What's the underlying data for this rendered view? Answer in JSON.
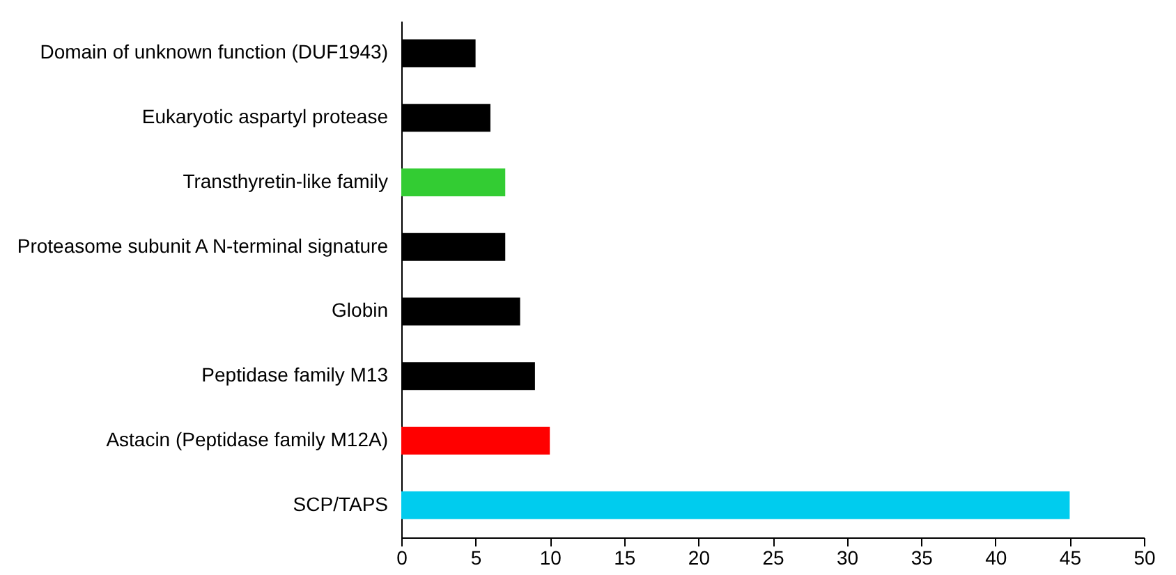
{
  "chart_data": {
    "type": "bar",
    "orientation": "horizontal",
    "categories": [
      "Domain of unknown function (DUF1943)",
      "Eukaryotic aspartyl protease",
      "Transthyretin-like family",
      "Proteasome subunit A N-terminal signature",
      "Globin",
      "Peptidase family M13",
      "Astacin (Peptidase family M12A)",
      "SCP/TAPS"
    ],
    "values": [
      5,
      6,
      7,
      7,
      8,
      9,
      10,
      45
    ],
    "colors": [
      "#000000",
      "#000000",
      "#33cc33",
      "#000000",
      "#000000",
      "#000000",
      "#ff0000",
      "#00ccee"
    ],
    "xlim": [
      0,
      50
    ],
    "xticks": [
      0,
      5,
      10,
      15,
      20,
      25,
      30,
      35,
      40,
      45,
      50
    ],
    "grid": false
  }
}
